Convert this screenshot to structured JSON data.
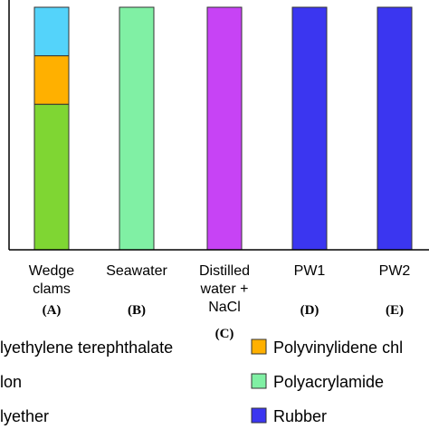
{
  "chart_data": {
    "type": "bar",
    "stacked": true,
    "categories": [
      {
        "name": [
          "Wedge",
          "clams"
        ],
        "letter": "(A)"
      },
      {
        "name": [
          "Seawater"
        ],
        "letter": "(B)"
      },
      {
        "name": [
          "Distilled",
          "water +",
          "NaCl"
        ],
        "letter": "(C)"
      },
      {
        "name": [
          "PW1"
        ],
        "letter": "(D)"
      },
      {
        "name": [
          "PW2"
        ],
        "letter": "(E)"
      }
    ],
    "ylim": [
      0,
      100
    ],
    "grid": false,
    "series": [
      {
        "color": "#7fd633",
        "values": [
          60,
          0,
          0,
          0,
          0
        ]
      },
      {
        "color": "#ffb000",
        "values": [
          20,
          0,
          0,
          0,
          0
        ]
      },
      {
        "color": "#54d3fa",
        "values": [
          20,
          0,
          0,
          0,
          0
        ]
      },
      {
        "color": "#80f0a4",
        "values": [
          0,
          100,
          0,
          0,
          0
        ]
      },
      {
        "color": "#c743f5",
        "values": [
          0,
          0,
          100,
          0,
          0
        ]
      },
      {
        "color": "#3b36f0",
        "values": [
          0,
          0,
          0,
          100,
          100
        ]
      }
    ],
    "legend": [
      {
        "label": "lyethylene terephthalate",
        "color": null
      },
      {
        "label": "Polyvinylidene chl",
        "color": "#ffb000"
      },
      {
        "label": "lon",
        "color": null
      },
      {
        "label": "Polyacrylamide",
        "color": "#80f0a4"
      },
      {
        "label": "lyether",
        "color": null
      },
      {
        "label": "Rubber",
        "color": "#3b36f0"
      }
    ]
  }
}
